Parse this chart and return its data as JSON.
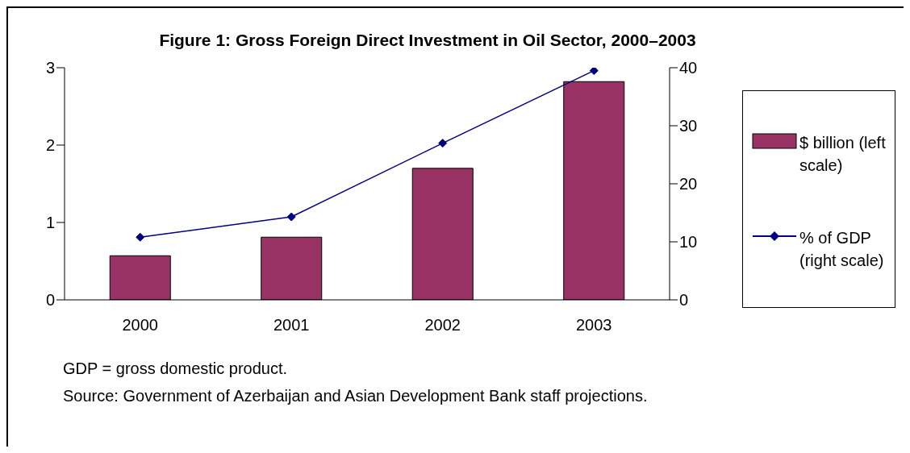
{
  "chart_data": {
    "type": "bar",
    "title": "Figure 1: Gross Foreign Direct Investment in Oil Sector, 2000–2003",
    "categories": [
      "2000",
      "2001",
      "2002",
      "2003"
    ],
    "series": [
      {
        "name": "$ billion (left scale)",
        "color": "#993366",
        "values": [
          0.57,
          0.81,
          1.7,
          2.82
        ]
      },
      {
        "name": "% of GDP (right scale)",
        "color": "#000080",
        "values": [
          10.8,
          14.3,
          27.0,
          39.5
        ],
        "type": "line",
        "axis": "y2",
        "marker": "diamond"
      }
    ],
    "ylim": [
      0,
      3
    ],
    "yticks": [
      0,
      1,
      2,
      3
    ],
    "y2lim": [
      0,
      40
    ],
    "y2ticks": [
      0,
      10,
      20,
      30,
      40
    ],
    "grid": false,
    "legend": "right",
    "annotations": [
      "GDP = gross domestic product.",
      "Source: Government of Azerbaijan and Asian Development Bank staff projections."
    ]
  }
}
